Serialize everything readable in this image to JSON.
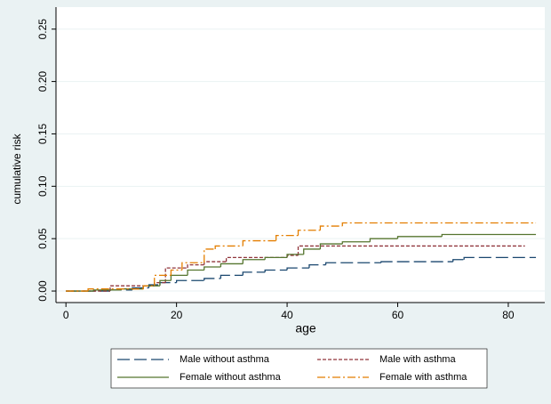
{
  "chart_data": {
    "type": "step",
    "xlabel": "age",
    "ylabel": "cumulative risk",
    "xlim": [
      -1.8,
      86.6
    ],
    "ylim": [
      -0.011,
      0.271
    ],
    "xticks": [
      0,
      20,
      40,
      60,
      80
    ],
    "yticks": [
      {
        "value": 0,
        "label": "0.00"
      },
      {
        "value": 0.05,
        "label": "0.05"
      },
      {
        "value": 0.1,
        "label": "0.10"
      },
      {
        "value": 0.15,
        "label": "0.15"
      },
      {
        "value": 0.2,
        "label": "0.20"
      },
      {
        "value": 0.25,
        "label": "0.25"
      }
    ],
    "grid": true,
    "series": [
      {
        "name": "Male without asthma",
        "color": "#1a476f",
        "x": [
          0,
          8,
          12,
          15,
          17,
          20,
          25,
          28,
          32,
          36,
          40,
          44,
          47,
          57,
          70,
          72,
          85
        ],
        "values": [
          0,
          0.001,
          0.003,
          0.006,
          0.008,
          0.01,
          0.012,
          0.015,
          0.018,
          0.02,
          0.022,
          0.025,
          0.027,
          0.028,
          0.03,
          0.032,
          0.032
        ]
      },
      {
        "name": "Male with asthma",
        "color": "#90353b",
        "x": [
          0,
          8,
          16,
          18,
          22,
          25,
          29,
          40,
          42,
          83
        ],
        "values": [
          0,
          0.005,
          0.008,
          0.022,
          0.025,
          0.028,
          0.032,
          0.034,
          0.043,
          0.043
        ]
      },
      {
        "name": "Female without asthma",
        "color": "#55752f",
        "x": [
          0,
          5,
          10,
          14,
          17,
          19,
          22,
          25,
          28,
          32,
          36,
          40,
          43,
          46,
          50,
          55,
          60,
          68,
          85
        ],
        "values": [
          0,
          0.001,
          0.002,
          0.005,
          0.01,
          0.015,
          0.02,
          0.023,
          0.026,
          0.03,
          0.032,
          0.035,
          0.04,
          0.045,
          0.047,
          0.05,
          0.052,
          0.054,
          0.054
        ]
      },
      {
        "name": "Female with asthma",
        "color": "#e37e00",
        "x": [
          0,
          4,
          14,
          16,
          19,
          21,
          25,
          27,
          32,
          38,
          42,
          46,
          50,
          85
        ],
        "values": [
          0,
          0.002,
          0.005,
          0.015,
          0.02,
          0.027,
          0.04,
          0.043,
          0.048,
          0.053,
          0.058,
          0.062,
          0.065,
          0.065
        ]
      }
    ]
  }
}
